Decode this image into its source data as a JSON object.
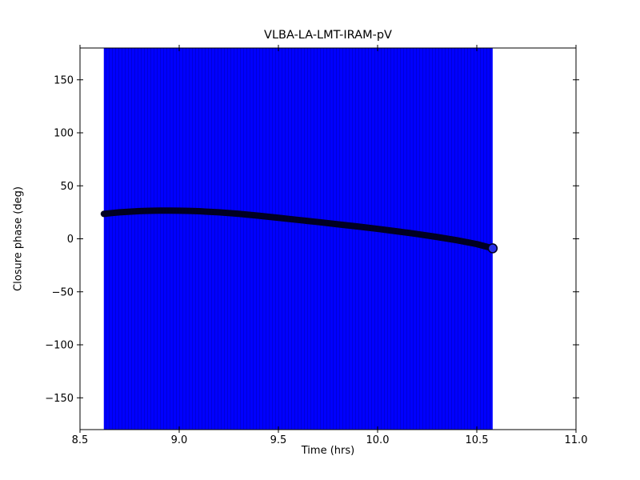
{
  "figure": {
    "title": "VLBA-LA-LMT-IRAM-pV",
    "xlabel": "Time (hrs)",
    "ylabel": "Closure phase (deg)"
  },
  "colors": {
    "error_band": "#0000ff",
    "error_band_stripe": "#0000d6",
    "marker_line": "#000022",
    "end_marker_fill": "#2a30e8",
    "axis": "#000000",
    "background": "#ffffff"
  },
  "chart_data": {
    "type": "line",
    "title": "VLBA-LA-LMT-IRAM-pV",
    "xlabel": "Time (hrs)",
    "ylabel": "Closure phase (deg)",
    "xlim": [
      8.5,
      11.0
    ],
    "ylim": [
      -180,
      180
    ],
    "grid": false,
    "legend": false,
    "xticks": {
      "values": [
        8.5,
        9.0,
        9.5,
        10.0,
        10.5,
        11.0
      ],
      "labels": [
        "8.5",
        "9.0",
        "9.5",
        "10.0",
        "10.5",
        "11.0"
      ]
    },
    "yticks": {
      "values": [
        -150,
        -100,
        -50,
        0,
        50,
        100,
        150
      ],
      "labels": [
        "−150",
        "−100",
        "−50",
        "0",
        "50",
        "100",
        "150"
      ]
    },
    "error_band": {
      "x_start": 8.62,
      "x_end": 10.58,
      "spans_full_y_range": true
    },
    "series": [
      {
        "name": "closure phase",
        "x": [
          8.62,
          8.66,
          8.7,
          8.75,
          8.8,
          8.85,
          8.9,
          8.95,
          9.0,
          9.05,
          9.1,
          9.15,
          9.2,
          9.3,
          9.4,
          9.5,
          9.6,
          9.7,
          9.8,
          9.9,
          10.0,
          10.1,
          10.2,
          10.3,
          10.4,
          10.5,
          10.58
        ],
        "y": [
          23.5,
          24.3,
          25.0,
          25.6,
          26.1,
          26.4,
          26.6,
          26.6,
          26.5,
          26.3,
          26.0,
          25.5,
          25.0,
          23.6,
          21.8,
          19.8,
          17.8,
          15.8,
          13.7,
          11.6,
          9.4,
          7.0,
          4.5,
          1.7,
          -1.4,
          -5.0,
          -9.0
        ]
      }
    ]
  }
}
